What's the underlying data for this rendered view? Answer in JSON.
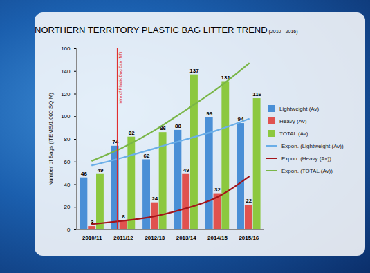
{
  "chart_data": {
    "type": "bar",
    "title": "NORTHERN TERRITORY PLASTIC BAG LITTER TREND",
    "subtitle": "(2010 - 2016)",
    "y_label": "Number of Bags (ITEMS/1,000 SQ M)",
    "categories": [
      "2010/11",
      "2011/12",
      "2012/13",
      "2013/14",
      "2014/15",
      "2015/16"
    ],
    "series": [
      {
        "name": "Lightweight (Av)",
        "type": "bar",
        "color": "#4a8fd6",
        "values": [
          46,
          74,
          62,
          88,
          99,
          94
        ]
      },
      {
        "name": "Heavy (Av)",
        "type": "bar",
        "color": "#e0524f",
        "values": [
          3,
          8,
          24,
          49,
          32,
          22
        ]
      },
      {
        "name": "TOTAL (Av)",
        "type": "bar",
        "color": "#8cc83f",
        "values": [
          49,
          82,
          86,
          137,
          131,
          116
        ]
      },
      {
        "name": "Expon. (Lightweight (Av))",
        "type": "line",
        "color": "#6aaee8",
        "values": [
          57,
          64,
          72,
          80,
          88,
          98
        ]
      },
      {
        "name": "Expon. (Heavy (Av))",
        "type": "line",
        "color": "#a3141a",
        "values": [
          5,
          8,
          12,
          19,
          29,
          47
        ]
      },
      {
        "name": "Expon. (TOTAL (Av))",
        "type": "line",
        "color": "#7ab648",
        "values": [
          61,
          73,
          88,
          106,
          125,
          147
        ]
      }
    ],
    "annotations": [
      {
        "text": "Intro of Plastic Bag Ban (NT)",
        "category": "2011/12",
        "color": "#e02020"
      }
    ],
    "ylim": [
      0,
      160
    ],
    "yticks": [
      0,
      20,
      40,
      60,
      80,
      100,
      120,
      140,
      160
    ],
    "grid": false,
    "data_labels": true,
    "legend": "right"
  }
}
